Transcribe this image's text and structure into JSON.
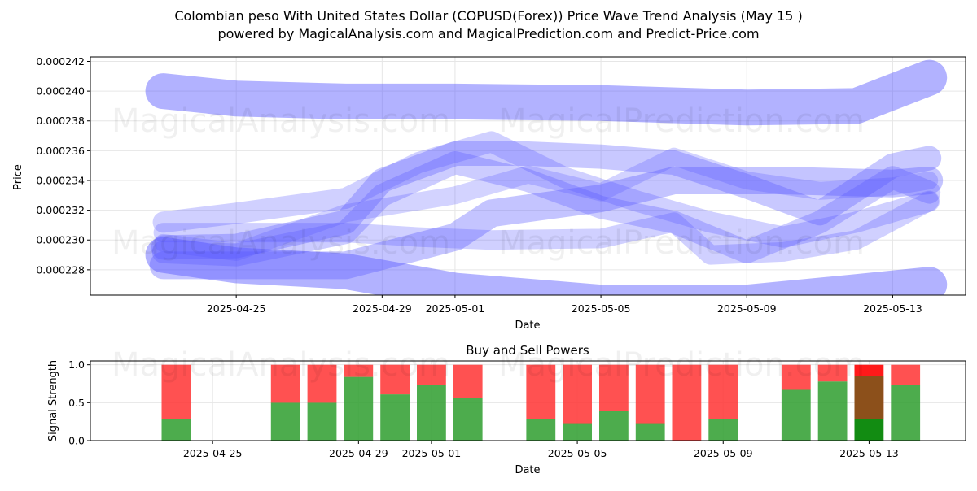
{
  "title_line1": "Colombian peso With United States Dollar (COPUSD(Forex)) Price Wave Trend Analysis (May 15 )",
  "title_line2": "powered by MagicalAnalysis.com and MagicalPrediction.com and Predict-Price.com",
  "watermarks": [
    "MagicalAnalysis.com",
    "MagicalPrediction.com"
  ],
  "colors": {
    "wave": "#5555ff",
    "buy": "#2e9e2e",
    "sell": "#ff3333",
    "buy_strong": "#128c12",
    "sell_strong": "#ff1a1a"
  },
  "chart_data": [
    {
      "type": "line",
      "title": "",
      "xlabel": "Date",
      "ylabel": "Price",
      "x_ticks": [
        "2025-04-25",
        "2025-04-29",
        "2025-05-01",
        "2025-05-05",
        "2025-05-09",
        "2025-05-13"
      ],
      "y_ticks": [
        "0.000228",
        "0.000230",
        "0.000232",
        "0.000234",
        "0.000236",
        "0.000238",
        "0.000240",
        "0.000242"
      ],
      "xlim": [
        "2025-04-21",
        "2025-05-15"
      ],
      "ylim": [
        0.0002263,
        0.0002423
      ],
      "grid": true,
      "series": [
        {
          "x": [
            "2025-04-23",
            "2025-04-25",
            "2025-04-28",
            "2025-05-01",
            "2025-05-05",
            "2025-05-09",
            "2025-05-12",
            "2025-05-14"
          ],
          "values": [
            0.00024,
            0.0002395,
            0.0002393,
            0.0002393,
            0.0002392,
            0.0002389,
            0.000239,
            0.0002409
          ]
        },
        {
          "x": [
            "2025-04-23",
            "2025-04-25",
            "2025-04-28",
            "2025-05-01",
            "2025-05-05",
            "2025-05-09",
            "2025-05-12",
            "2025-05-14"
          ],
          "values": [
            0.000229,
            0.0002283,
            0.0002279,
            0.0002266,
            0.0002258,
            0.0002258,
            0.0002265,
            0.000227
          ]
        },
        {
          "x": [
            "2025-04-23",
            "2025-04-25",
            "2025-04-28",
            "2025-05-01",
            "2025-05-02",
            "2025-05-05",
            "2025-05-07",
            "2025-05-10",
            "2025-05-13",
            "2025-05-14"
          ],
          "values": [
            0.0002283,
            0.0002283,
            0.0002283,
            0.0002302,
            0.0002318,
            0.0002328,
            0.000234,
            0.000234,
            0.0002338,
            0.000234
          ]
        },
        {
          "x": [
            "2025-04-23",
            "2025-04-25",
            "2025-04-28",
            "2025-04-29",
            "2025-05-01",
            "2025-05-03",
            "2025-05-05",
            "2025-05-07",
            "2025-05-09",
            "2025-05-11",
            "2025-05-13",
            "2025-05-14"
          ],
          "values": [
            0.0002295,
            0.0002296,
            0.0002312,
            0.000234,
            0.0002358,
            0.0002358,
            0.0002356,
            0.0002352,
            0.0002336,
            0.0002318,
            0.000235,
            0.0002355
          ]
        },
        {
          "x": [
            "2025-04-23",
            "2025-04-25",
            "2025-04-28",
            "2025-04-29",
            "2025-05-01",
            "2025-05-03",
            "2025-05-05",
            "2025-05-07",
            "2025-05-09",
            "2025-05-11",
            "2025-05-13",
            "2025-05-14"
          ],
          "values": [
            0.0002292,
            0.000229,
            0.0002305,
            0.000233,
            0.0002352,
            0.000234,
            0.0002322,
            0.0002312,
            0.0002292,
            0.0002312,
            0.0002342,
            0.0002332
          ]
        },
        {
          "x": [
            "2025-04-23",
            "2025-04-25",
            "2025-04-28",
            "2025-04-30",
            "2025-05-02",
            "2025-05-04",
            "2025-05-06",
            "2025-05-08",
            "2025-05-10",
            "2025-05-12",
            "2025-05-14"
          ],
          "values": [
            0.0002312,
            0.0002318,
            0.0002328,
            0.0002352,
            0.0002366,
            0.0002342,
            0.0002326,
            0.0002312,
            0.0002302,
            0.0002312,
            0.0002326
          ]
        },
        {
          "x": [
            "2025-04-23",
            "2025-04-25",
            "2025-04-28",
            "2025-04-30",
            "2025-05-02",
            "2025-05-05",
            "2025-05-07",
            "2025-05-08",
            "2025-05-10",
            "2025-05-12",
            "2025-05-14"
          ],
          "values": [
            0.0002305,
            0.0002305,
            0.0002305,
            0.0002302,
            0.00023,
            0.0002301,
            0.0002312,
            0.000229,
            0.0002292,
            0.00023,
            0.0002326
          ]
        },
        {
          "x": [
            "2025-04-23",
            "2025-04-25",
            "2025-04-28",
            "2025-05-01",
            "2025-05-03",
            "2025-05-05",
            "2025-05-07",
            "2025-05-09",
            "2025-05-11",
            "2025-05-13",
            "2025-05-14"
          ],
          "values": [
            0.0002298,
            0.0002292,
            0.0002318,
            0.000233,
            0.0002344,
            0.0002332,
            0.0002356,
            0.000234,
            0.0002333,
            0.0002336,
            0.000234
          ]
        }
      ]
    },
    {
      "type": "bar",
      "title": "Buy and Sell Powers",
      "xlabel": "Date",
      "ylabel": "Signal Strength",
      "x_ticks": [
        "2025-04-25",
        "2025-04-29",
        "2025-05-01",
        "2025-05-05",
        "2025-05-09",
        "2025-05-13"
      ],
      "y_ticks": [
        "0.0",
        "0.5",
        "1.0"
      ],
      "xlim": [
        "2025-04-21",
        "2025-05-15"
      ],
      "ylim": [
        0,
        1.05
      ],
      "categories": [
        "2025-04-24",
        "2025-04-26",
        "2025-04-27",
        "2025-04-28",
        "2025-04-29",
        "2025-04-30",
        "2025-05-01",
        "2025-05-02",
        "2025-05-03",
        "2025-05-04",
        "2025-05-05",
        "2025-05-06",
        "2025-05-07",
        "2025-05-08",
        "2025-05-09",
        "2025-05-10",
        "2025-05-11",
        "2025-05-12",
        "2025-05-13",
        "2025-05-14"
      ],
      "series": [
        {
          "name": "buy",
          "values": [
            0.28,
            null,
            0.5,
            0.5,
            0.84,
            0.61,
            0.73,
            0.56,
            null,
            0.28,
            0.23,
            0.39,
            0.23,
            0.0,
            0.28,
            null,
            0.67,
            0.78,
            0.28,
            0.73
          ]
        },
        {
          "name": "sell",
          "values": [
            0.72,
            null,
            0.5,
            0.5,
            0.16,
            0.39,
            0.27,
            0.44,
            null,
            0.72,
            0.77,
            0.61,
            0.77,
            1.0,
            0.72,
            null,
            0.33,
            0.22,
            0.72,
            0.27
          ]
        }
      ]
    }
  ]
}
